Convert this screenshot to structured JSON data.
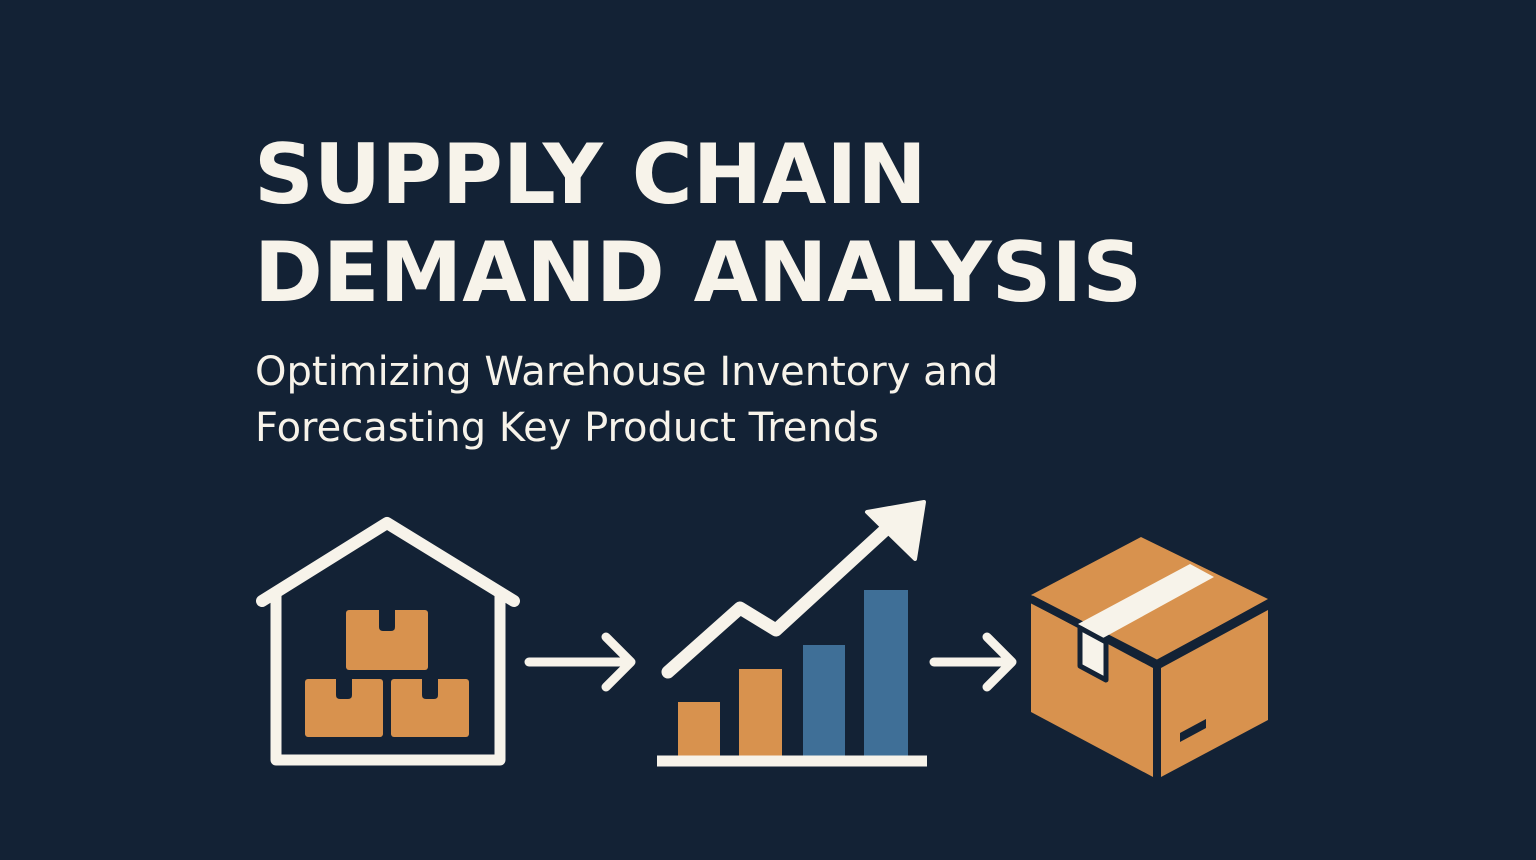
{
  "title": {
    "line1": "SUPPLY CHAIN",
    "line2": "DEMAND ANALYSIS"
  },
  "subtitle": {
    "line1": "Optimizing Warehouse Inventory and",
    "line2": "Forecasting Key Product Trends"
  },
  "icons": {
    "warehouse": "warehouse-icon",
    "arrow_first": "arrow-right-icon",
    "growth_chart": "bar-chart-trend-icon",
    "arrow_second": "arrow-right-icon",
    "package": "package-box-icon"
  },
  "colors": {
    "background": "#132235",
    "foreground": "#f7f3ea",
    "accent_orange": "#d8924e",
    "accent_blue": "#3f6f97"
  }
}
